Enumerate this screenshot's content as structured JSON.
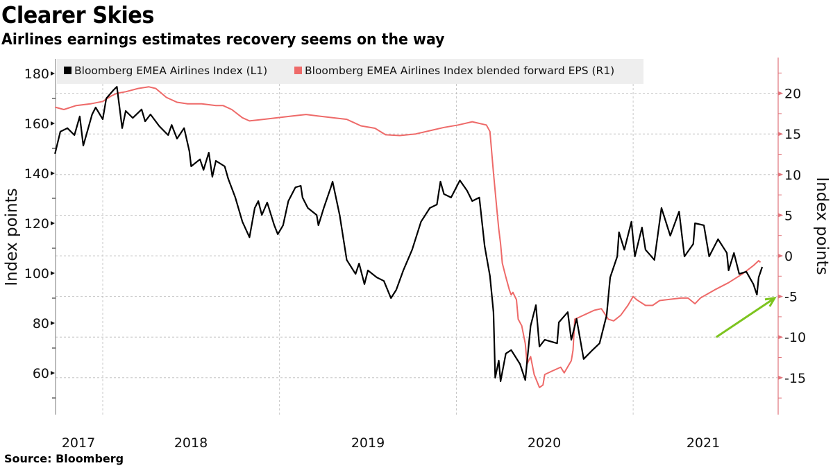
{
  "header": {
    "title": "Clearer Skies",
    "subtitle": "Airlines earnings estimates recovery seems on the way"
  },
  "footer": {
    "source": "Source:  Bloomberg"
  },
  "colors": {
    "black_series": "#000000",
    "red_series": "#ee6a69",
    "right_axis": "#e0737a",
    "arrow": "#7dc41f",
    "legend_bg": "#eeeeee",
    "grid": "#bbbbbb"
  },
  "chart_data": {
    "type": "line",
    "title": "Clearer Skies",
    "subtitle": "Airlines earnings estimates recovery seems on the way",
    "xlabel": "",
    "x_ticks": [
      "2017",
      "2018",
      "2019",
      "2020",
      "2021"
    ],
    "x_range": [
      2017.73,
      2021.82
    ],
    "grid": true,
    "legend_position": "top-left",
    "left_axis": {
      "label": "Index points",
      "ticks": [
        60,
        80,
        100,
        120,
        140,
        160,
        180
      ],
      "range": [
        44,
        186
      ]
    },
    "right_axis": {
      "label": "Index points",
      "ticks": [
        -15,
        -10,
        -5,
        0,
        5,
        10,
        15,
        20
      ],
      "range": [
        -19.6,
        24.5
      ]
    },
    "series": [
      {
        "name": "Bloomberg EMEA Airlines Index (L1)",
        "axis": "left",
        "color": "#000000",
        "points": [
          [
            2017.73,
            147.8
          ],
          [
            2017.76,
            156.7
          ],
          [
            2017.8,
            158.1
          ],
          [
            2017.84,
            155.3
          ],
          [
            2017.87,
            162.8
          ],
          [
            2017.89,
            151.1
          ],
          [
            2017.94,
            163.6
          ],
          [
            2017.96,
            166.4
          ],
          [
            2018.0,
            161.7
          ],
          [
            2018.02,
            170.0
          ],
          [
            2018.06,
            173.3
          ],
          [
            2018.08,
            174.7
          ],
          [
            2018.11,
            158.1
          ],
          [
            2018.13,
            165.0
          ],
          [
            2018.17,
            162.2
          ],
          [
            2018.22,
            165.6
          ],
          [
            2018.24,
            160.8
          ],
          [
            2018.27,
            163.6
          ],
          [
            2018.32,
            158.9
          ],
          [
            2018.37,
            155.3
          ],
          [
            2018.39,
            159.4
          ],
          [
            2018.42,
            153.9
          ],
          [
            2018.46,
            158.1
          ],
          [
            2018.49,
            148.9
          ],
          [
            2018.5,
            142.8
          ],
          [
            2018.55,
            145.6
          ],
          [
            2018.57,
            141.4
          ],
          [
            2018.6,
            148.3
          ],
          [
            2018.62,
            138.6
          ],
          [
            2018.64,
            145.0
          ],
          [
            2018.69,
            142.8
          ],
          [
            2018.71,
            137.8
          ],
          [
            2018.75,
            130.3
          ],
          [
            2018.79,
            120.6
          ],
          [
            2018.83,
            114.4
          ],
          [
            2018.86,
            126.1
          ],
          [
            2018.88,
            128.9
          ],
          [
            2018.9,
            123.3
          ],
          [
            2018.93,
            128.3
          ],
          [
            2018.97,
            119.2
          ],
          [
            2018.99,
            115.6
          ],
          [
            2019.02,
            119.2
          ],
          [
            2019.05,
            128.9
          ],
          [
            2019.09,
            134.4
          ],
          [
            2019.12,
            135.0
          ],
          [
            2019.13,
            130.3
          ],
          [
            2019.16,
            126.1
          ],
          [
            2019.21,
            123.3
          ],
          [
            2019.22,
            119.2
          ],
          [
            2019.25,
            126.1
          ],
          [
            2019.29,
            134.4
          ],
          [
            2019.3,
            136.7
          ],
          [
            2019.34,
            123.3
          ],
          [
            2019.38,
            105.3
          ],
          [
            2019.43,
            99.7
          ],
          [
            2019.45,
            103.9
          ],
          [
            2019.48,
            95.6
          ],
          [
            2019.5,
            101.1
          ],
          [
            2019.55,
            98.3
          ],
          [
            2019.59,
            96.9
          ],
          [
            2019.63,
            90.0
          ],
          [
            2019.66,
            93.3
          ],
          [
            2019.7,
            101.1
          ],
          [
            2019.75,
            109.4
          ],
          [
            2019.8,
            120.6
          ],
          [
            2019.85,
            126.1
          ],
          [
            2019.89,
            127.5
          ],
          [
            2019.91,
            136.7
          ],
          [
            2019.93,
            131.7
          ],
          [
            2019.97,
            130.3
          ],
          [
            2020.02,
            137.2
          ],
          [
            2020.06,
            133.1
          ],
          [
            2020.09,
            128.9
          ],
          [
            2020.13,
            130.3
          ],
          [
            2020.16,
            110.8
          ],
          [
            2020.19,
            98.9
          ],
          [
            2020.21,
            84.4
          ],
          [
            2020.22,
            58.1
          ],
          [
            2020.24,
            65.0
          ],
          [
            2020.25,
            56.7
          ],
          [
            2020.28,
            67.8
          ],
          [
            2020.31,
            69.2
          ],
          [
            2020.36,
            63.6
          ],
          [
            2020.39,
            57.2
          ],
          [
            2020.42,
            78.9
          ],
          [
            2020.45,
            87.2
          ],
          [
            2020.47,
            70.6
          ],
          [
            2020.5,
            73.3
          ],
          [
            2020.57,
            71.9
          ],
          [
            2020.58,
            80.3
          ],
          [
            2020.63,
            84.4
          ],
          [
            2020.65,
            73.3
          ],
          [
            2020.68,
            81.7
          ],
          [
            2020.72,
            65.6
          ],
          [
            2020.77,
            69.2
          ],
          [
            2020.81,
            71.9
          ],
          [
            2020.85,
            83.1
          ],
          [
            2020.87,
            98.3
          ],
          [
            2020.91,
            106.7
          ],
          [
            2020.92,
            116.4
          ],
          [
            2020.95,
            109.4
          ],
          [
            2020.99,
            120.6
          ],
          [
            2021.01,
            106.7
          ],
          [
            2021.05,
            118.3
          ],
          [
            2021.07,
            109.4
          ],
          [
            2021.12,
            105.3
          ],
          [
            2021.16,
            126.1
          ],
          [
            2021.21,
            115.0
          ],
          [
            2021.26,
            124.7
          ],
          [
            2021.29,
            106.7
          ],
          [
            2021.34,
            111.7
          ],
          [
            2021.35,
            120.0
          ],
          [
            2021.4,
            119.2
          ],
          [
            2021.43,
            106.7
          ],
          [
            2021.48,
            113.6
          ],
          [
            2021.53,
            108.1
          ],
          [
            2021.54,
            101.1
          ],
          [
            2021.57,
            108.1
          ],
          [
            2021.6,
            99.7
          ],
          [
            2021.64,
            100.6
          ],
          [
            2021.68,
            95.6
          ],
          [
            2021.7,
            91.4
          ],
          [
            2021.71,
            98.3
          ],
          [
            2021.73,
            102.5
          ]
        ]
      },
      {
        "name": "Bloomberg EMEA Airlines Index blended forward EPS (R1)",
        "axis": "right",
        "color": "#ee6a69",
        "points": [
          [
            2017.73,
            18.3
          ],
          [
            2017.78,
            18.0
          ],
          [
            2017.85,
            18.5
          ],
          [
            2017.93,
            18.7
          ],
          [
            2018.0,
            19.0
          ],
          [
            2018.05,
            19.7
          ],
          [
            2018.08,
            20.0
          ],
          [
            2018.13,
            20.2
          ],
          [
            2018.2,
            20.6
          ],
          [
            2018.26,
            20.8
          ],
          [
            2018.3,
            20.6
          ],
          [
            2018.36,
            19.5
          ],
          [
            2018.42,
            18.9
          ],
          [
            2018.48,
            18.7
          ],
          [
            2018.56,
            18.7
          ],
          [
            2018.64,
            18.5
          ],
          [
            2018.68,
            18.5
          ],
          [
            2018.73,
            18.0
          ],
          [
            2018.79,
            17.0
          ],
          [
            2018.83,
            16.6
          ],
          [
            2018.91,
            16.8
          ],
          [
            2018.99,
            17.0
          ],
          [
            2019.07,
            17.2
          ],
          [
            2019.15,
            17.4
          ],
          [
            2019.22,
            17.2
          ],
          [
            2019.3,
            17.0
          ],
          [
            2019.38,
            16.8
          ],
          [
            2019.46,
            16.0
          ],
          [
            2019.54,
            15.7
          ],
          [
            2019.6,
            14.9
          ],
          [
            2019.68,
            14.8
          ],
          [
            2019.77,
            15.0
          ],
          [
            2019.85,
            15.4
          ],
          [
            2019.93,
            15.8
          ],
          [
            2020.01,
            16.1
          ],
          [
            2020.09,
            16.5
          ],
          [
            2020.17,
            16.1
          ],
          [
            2020.19,
            15.3
          ],
          [
            2020.21,
            10.2
          ],
          [
            2020.23,
            5.5
          ],
          [
            2020.24,
            3.3
          ],
          [
            2020.25,
            1.5
          ],
          [
            2020.26,
            -0.9
          ],
          [
            2020.28,
            -2.6
          ],
          [
            2020.3,
            -4.2
          ],
          [
            2020.31,
            -4.8
          ],
          [
            2020.32,
            -4.5
          ],
          [
            2020.34,
            -5.4
          ],
          [
            2020.35,
            -7.8
          ],
          [
            2020.37,
            -8.6
          ],
          [
            2020.39,
            -10.8
          ],
          [
            2020.4,
            -13.3
          ],
          [
            2020.42,
            -12.4
          ],
          [
            2020.44,
            -14.6
          ],
          [
            2020.47,
            -16.2
          ],
          [
            2020.49,
            -15.9
          ],
          [
            2020.5,
            -14.6
          ],
          [
            2020.54,
            -14.2
          ],
          [
            2020.59,
            -13.7
          ],
          [
            2020.61,
            -14.4
          ],
          [
            2020.65,
            -12.9
          ],
          [
            2020.66,
            -11.6
          ],
          [
            2020.67,
            -7.8
          ],
          [
            2020.69,
            -7.6
          ],
          [
            2020.74,
            -7.1
          ],
          [
            2020.78,
            -6.7
          ],
          [
            2020.82,
            -6.5
          ],
          [
            2020.86,
            -7.8
          ],
          [
            2020.89,
            -8.0
          ],
          [
            2020.93,
            -7.3
          ],
          [
            2020.97,
            -6.1
          ],
          [
            2021.0,
            -5.0
          ],
          [
            2021.02,
            -5.4
          ],
          [
            2021.07,
            -6.1
          ],
          [
            2021.11,
            -6.1
          ],
          [
            2021.15,
            -5.5
          ],
          [
            2021.19,
            -5.4
          ],
          [
            2021.27,
            -5.2
          ],
          [
            2021.31,
            -5.2
          ],
          [
            2021.35,
            -5.9
          ],
          [
            2021.38,
            -5.2
          ],
          [
            2021.46,
            -4.2
          ],
          [
            2021.54,
            -3.3
          ],
          [
            2021.62,
            -2.2
          ],
          [
            2021.68,
            -1.2
          ],
          [
            2021.71,
            -0.6
          ],
          [
            2021.72,
            -0.8
          ]
        ]
      }
    ],
    "annotations": [
      {
        "type": "arrow",
        "description": "green upward arrow pointing to recovery",
        "from": [
          2021.47,
          -10.0
        ],
        "to": [
          2021.8,
          -5.2
        ]
      }
    ]
  }
}
